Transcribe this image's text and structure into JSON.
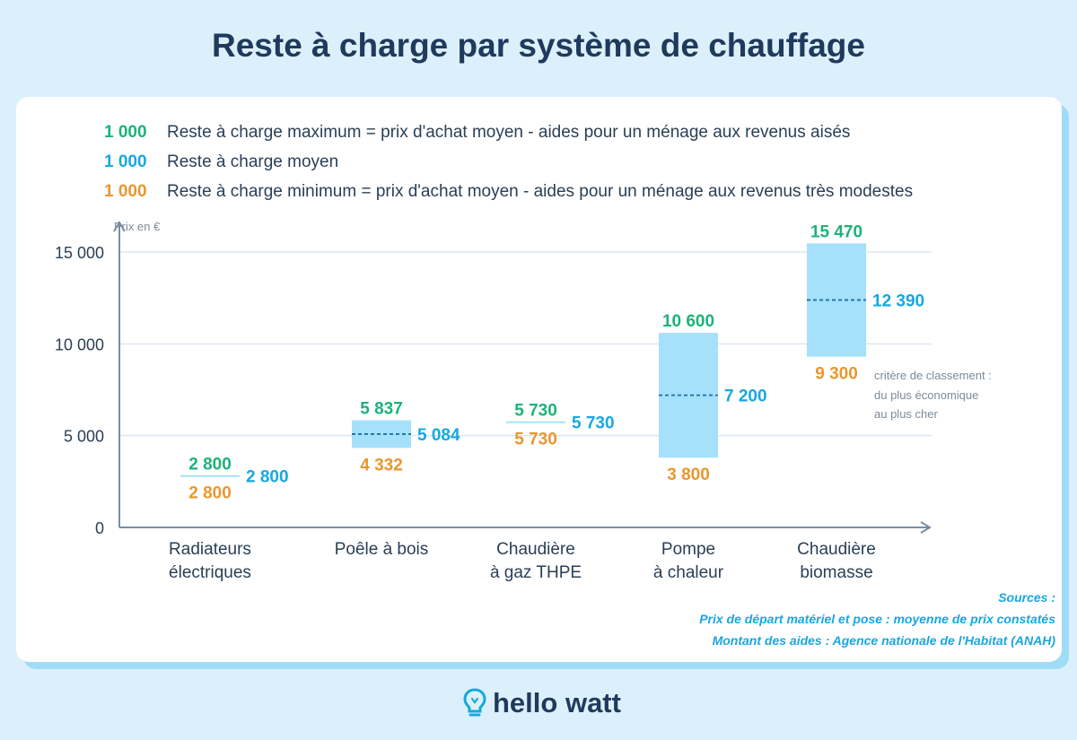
{
  "title": "Reste à charge par système de chauffage",
  "legend": [
    {
      "number": "1 000",
      "color": "#1db27a",
      "text": "Reste à charge maximum = prix d'achat moyen - aides pour un ménage aux revenus aisés"
    },
    {
      "number": "1 000",
      "color": "#16a8e0",
      "text": "Reste à charge moyen"
    },
    {
      "number": "1 000",
      "color": "#e8972f",
      "text": "Reste à charge minimum = prix d'achat moyen - aides pour un ménage aux revenus très modestes"
    }
  ],
  "criteria_note": [
    "critère de classement :",
    "du plus économique",
    "au plus cher"
  ],
  "sources": {
    "heading": "Sources :",
    "line1": "Prix de départ matériel et pose : moyenne de prix constatés",
    "line2": "Montant des aides : Agence nationale de l'Habitat (ANAH)"
  },
  "logo": {
    "text": "hello watt",
    "icon": "lightbulb-icon"
  },
  "colors": {
    "max": "#1db27a",
    "avg": "#16a8e0",
    "min": "#e8972f",
    "bar": "#a5e1fb",
    "axis": "#7a8fa3",
    "grid": "#dde7ef"
  },
  "chart_data": {
    "type": "range-bar",
    "ylabel": "Prix en €",
    "xlabel": "",
    "ylim": [
      0,
      16000
    ],
    "yticks": [
      {
        "value": 0,
        "label": "0"
      },
      {
        "value": 5000,
        "label": "5 000"
      },
      {
        "value": 10000,
        "label": "10 000"
      },
      {
        "value": 15000,
        "label": "15 000"
      }
    ],
    "grid": true,
    "categories": [
      {
        "line1": "Radiateurs",
        "line2": "électriques",
        "max": 2800,
        "avg": 2800,
        "min": 2800,
        "max_label": "2 800",
        "avg_label": "2 800",
        "min_label": "2 800"
      },
      {
        "line1": "Poêle à bois",
        "line2": "",
        "max": 5837,
        "avg": 5084,
        "min": 4332,
        "max_label": "5 837",
        "avg_label": "5 084",
        "min_label": "4 332"
      },
      {
        "line1": "Chaudière",
        "line2": "à gaz THPE",
        "max": 5730,
        "avg": 5730,
        "min": 5730,
        "max_label": "5 730",
        "avg_label": "5 730",
        "min_label": "5 730"
      },
      {
        "line1": "Pompe",
        "line2": "à chaleur",
        "max": 10600,
        "avg": 7200,
        "min": 3800,
        "max_label": "10 600",
        "avg_label": "7 200",
        "min_label": "3 800"
      },
      {
        "line1": "Chaudière",
        "line2": "biomasse",
        "max": 15470,
        "avg": 12390,
        "min": 9300,
        "max_label": "15 470",
        "avg_label": "12  390",
        "min_label": "9 300"
      }
    ]
  }
}
